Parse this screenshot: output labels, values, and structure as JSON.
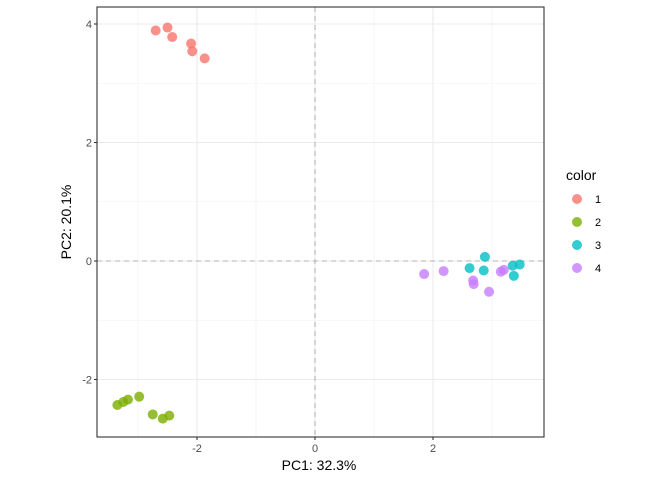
{
  "chart_data": {
    "type": "scatter",
    "xlabel": "PC1: 32.3%",
    "ylabel": "PC2: 20.1%",
    "xlim": [
      -3.7,
      3.9
    ],
    "ylim": [
      -2.95,
      4.3
    ],
    "x_ticks": [
      -2,
      0,
      2
    ],
    "x_tick_labels": [
      "-2",
      "0",
      "2"
    ],
    "y_ticks": [
      -2,
      0,
      2,
      4
    ],
    "y_tick_labels": [
      "-2",
      "0",
      "2",
      "4"
    ],
    "grid": true,
    "reference_lines": {
      "x": 0,
      "y": 0,
      "style": "dashed"
    },
    "legend": {
      "title": "color",
      "placement": "right"
    },
    "series": [
      {
        "name": "1",
        "color": "#F8766D",
        "x": [
          -2.7,
          -2.5,
          -2.42,
          -2.1,
          -2.08,
          -1.87
        ],
        "y": [
          3.89,
          3.94,
          3.78,
          3.67,
          3.54,
          3.42
        ]
      },
      {
        "name": "2",
        "color": "#7CAE00",
        "x": [
          -3.35,
          -3.25,
          -3.17,
          -2.98,
          -2.75,
          -2.58,
          -2.47
        ],
        "y": [
          -2.43,
          -2.38,
          -2.34,
          -2.29,
          -2.59,
          -2.66,
          -2.61
        ]
      },
      {
        "name": "3",
        "color": "#00BFC4",
        "x": [
          2.62,
          2.88,
          2.86,
          3.35,
          3.37,
          3.47
        ],
        "y": [
          -0.12,
          0.07,
          -0.16,
          -0.08,
          -0.25,
          -0.06
        ]
      },
      {
        "name": "4",
        "color": "#C77CFF",
        "x": [
          1.85,
          2.18,
          2.68,
          2.69,
          2.95,
          3.15,
          3.2
        ],
        "y": [
          -0.22,
          -0.17,
          -0.33,
          -0.39,
          -0.52,
          -0.18,
          -0.15
        ]
      }
    ]
  }
}
